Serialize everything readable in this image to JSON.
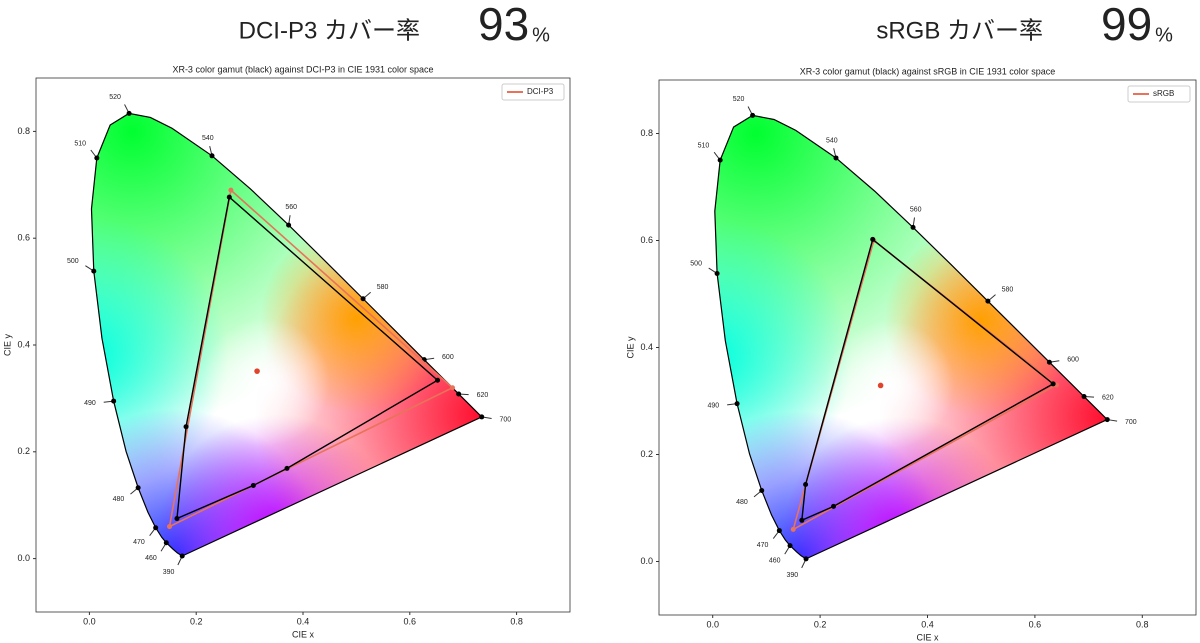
{
  "chart_data": [
    {
      "type": "scatter",
      "heading": "DCI-P3 カバー率",
      "coverage": 93,
      "coverage_unit": "%",
      "title": "XR-3 color gamut (black) against DCI-P3 in CIE 1931 color space",
      "xlabel": "CIE x",
      "ylabel": "CIE y",
      "xlim": [
        -0.1,
        0.9
      ],
      "ylim": [
        -0.1,
        0.9
      ],
      "xticks": [
        {
          "value": 0,
          "label": "0.0"
        },
        0.2,
        0.4,
        0.6,
        0.8
      ],
      "yticks": [
        {
          "value": 0,
          "label": "0.0"
        },
        0.2,
        0.4,
        0.6,
        0.8
      ],
      "legend": "upper right",
      "locus": {
        "color": "#000000",
        "x": [
          0.1738,
          0.1644,
          0.1566,
          0.144,
          0.1355,
          0.1241,
          0.1096,
          0.0913,
          0.0687,
          0.0454,
          0.0235,
          0.0082,
          0.0039,
          0.0139,
          0.0389,
          0.0743,
          0.1142,
          0.1547,
          0.2296,
          0.3016,
          0.3731,
          0.4441,
          0.5125,
          0.5752,
          0.627,
          0.6658,
          0.6915,
          0.719,
          0.7347
        ],
        "y": [
          0.0049,
          0.0109,
          0.0177,
          0.0297,
          0.0399,
          0.0578,
          0.0868,
          0.1327,
          0.2007,
          0.295,
          0.4127,
          0.5384,
          0.6548,
          0.7502,
          0.812,
          0.8338,
          0.8262,
          0.8059,
          0.7543,
          0.6923,
          0.6245,
          0.5547,
          0.4866,
          0.4242,
          0.3725,
          0.334,
          0.3083,
          0.2809,
          0.2653
        ],
        "labels": [
          390,
          null,
          null,
          460,
          null,
          470,
          null,
          480,
          null,
          490,
          null,
          500,
          null,
          510,
          null,
          520,
          null,
          null,
          540,
          null,
          560,
          null,
          580,
          null,
          600,
          null,
          620,
          null,
          700
        ]
      },
      "reference": {
        "name": "DCI-P3",
        "color": "#e8735a",
        "x": [
          0.68,
          0.265,
          0.15
        ],
        "y": [
          0.32,
          0.69,
          0.06
        ]
      },
      "measured": {
        "color": "#000000",
        "x": [
          0.652,
          0.262,
          0.181,
          0.164,
          0.307,
          0.37
        ],
        "y": [
          0.334,
          0.677,
          0.247,
          0.075,
          0.137,
          0.169
        ]
      },
      "white_point": {
        "color": "#e0442a",
        "x": 0.314,
        "y": 0.351
      }
    },
    {
      "type": "scatter",
      "heading": "sRGB カバー率",
      "coverage": 99,
      "coverage_unit": "%",
      "title": "XR-3 color gamut (black) against sRGB in CIE 1931 color space",
      "xlabel": "CIE x",
      "ylabel": "CIE y",
      "xlim": [
        -0.1,
        0.9
      ],
      "ylim": [
        -0.1,
        0.9
      ],
      "xticks": [
        {
          "value": 0,
          "label": "0.0"
        },
        0.2,
        0.4,
        0.6,
        0.8
      ],
      "yticks": [
        {
          "value": 0,
          "label": "0.0"
        },
        0.2,
        0.4,
        0.6,
        0.8
      ],
      "legend": "upper right",
      "locus": {
        "color": "#000000",
        "x": [
          0.1738,
          0.1644,
          0.1566,
          0.144,
          0.1355,
          0.1241,
          0.1096,
          0.0913,
          0.0687,
          0.0454,
          0.0235,
          0.0082,
          0.0039,
          0.0139,
          0.0389,
          0.0743,
          0.1142,
          0.1547,
          0.2296,
          0.3016,
          0.3731,
          0.4441,
          0.5125,
          0.5752,
          0.627,
          0.6658,
          0.6915,
          0.719,
          0.7347
        ],
        "y": [
          0.0049,
          0.0109,
          0.0177,
          0.0297,
          0.0399,
          0.0578,
          0.0868,
          0.1327,
          0.2007,
          0.295,
          0.4127,
          0.5384,
          0.6548,
          0.7502,
          0.812,
          0.8338,
          0.8262,
          0.8059,
          0.7543,
          0.6923,
          0.6245,
          0.5547,
          0.4866,
          0.4242,
          0.3725,
          0.334,
          0.3083,
          0.2809,
          0.2653
        ],
        "labels": [
          390,
          null,
          null,
          460,
          null,
          470,
          null,
          480,
          null,
          490,
          null,
          500,
          null,
          510,
          null,
          520,
          null,
          null,
          540,
          null,
          560,
          null,
          580,
          null,
          600,
          null,
          620,
          null,
          700
        ]
      },
      "reference": {
        "name": "sRGB",
        "color": "#e8735a",
        "x": [
          0.64,
          0.3,
          0.15
        ],
        "y": [
          0.33,
          0.6,
          0.06
        ]
      },
      "measured": {
        "color": "#000000",
        "x": [
          0.634,
          0.298,
          0.173,
          0.166,
          0.225
        ],
        "y": [
          0.332,
          0.602,
          0.144,
          0.077,
          0.103
        ]
      },
      "white_point": {
        "color": "#e0442a",
        "x": 0.3127,
        "y": 0.329
      }
    }
  ]
}
